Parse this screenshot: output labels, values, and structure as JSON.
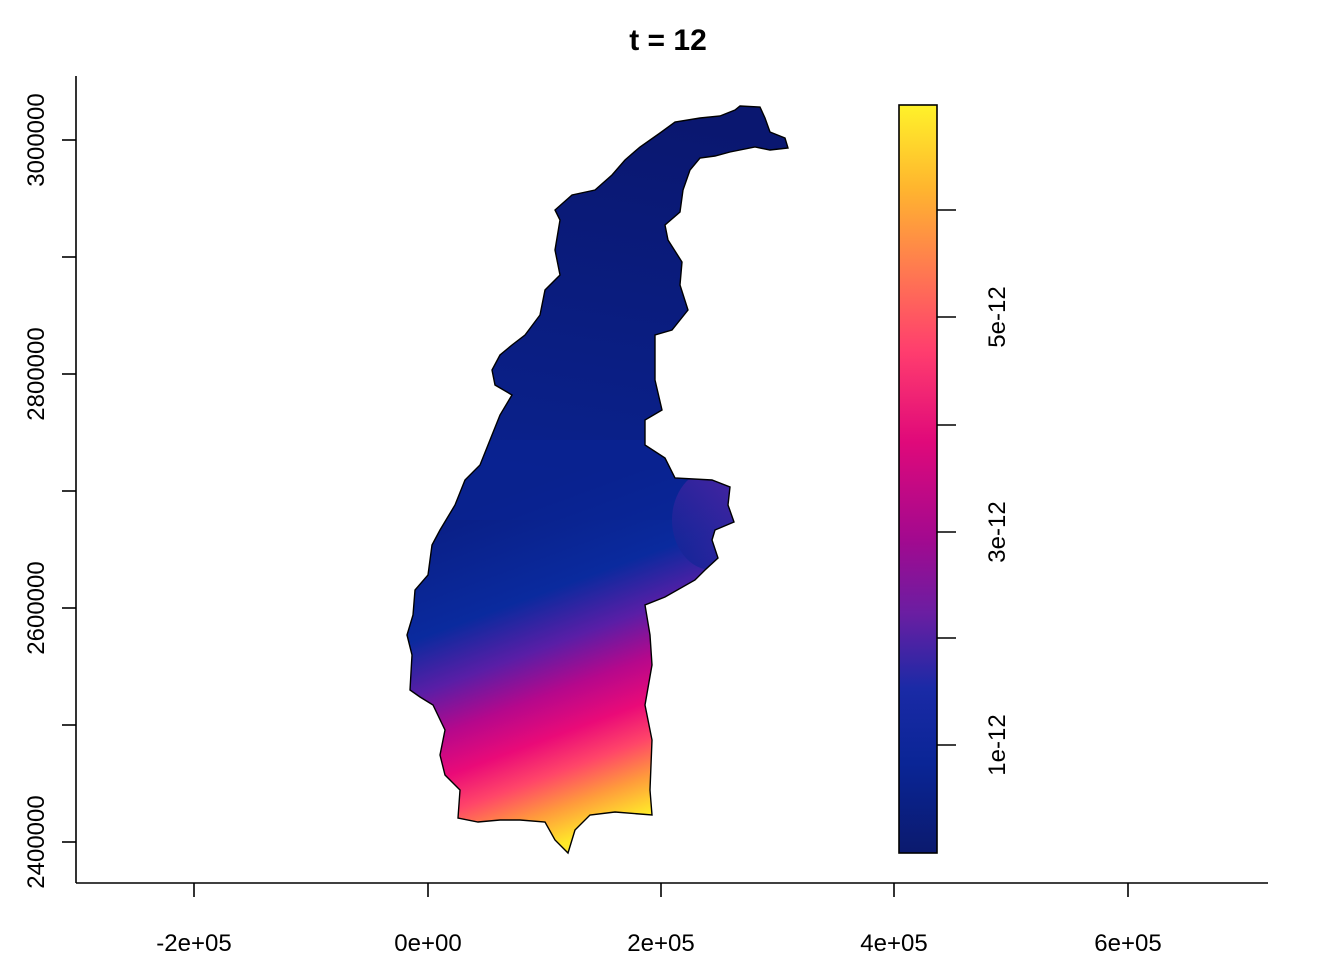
{
  "title": "t = 12",
  "map": {
    "crs_units": "projected easting/northing",
    "xlim": [
      -300000,
      720000
    ],
    "ylim": [
      2383000,
      3055000
    ],
    "x_ticks": [
      {
        "value": -200000,
        "label": "-2e+05"
      },
      {
        "value": 0,
        "label": "0e+00"
      },
      {
        "value": 200000,
        "label": "2e+05"
      },
      {
        "value": 400000,
        "label": "4e+05"
      },
      {
        "value": 600000,
        "label": "6e+05"
      }
    ],
    "y_ticks": [
      {
        "value": 2400000,
        "label": "2400000"
      },
      {
        "value": 2500000,
        "label": null
      },
      {
        "value": 2600000,
        "label": "2600000"
      },
      {
        "value": 2700000,
        "label": null
      },
      {
        "value": 2800000,
        "label": "2800000"
      },
      {
        "value": 2900000,
        "label": null
      },
      {
        "value": 3000000,
        "label": "3000000"
      }
    ],
    "region_outline_color": "#000000",
    "field_description": "raster field, low values in north, maximum at southern tip"
  },
  "legend": {
    "type": "continuous colorbar",
    "placement": "right, inside plot",
    "range": [
      3e-13,
      6e-12
    ],
    "ticks": [
      {
        "value": 1e-12,
        "label": "1e-12"
      },
      {
        "value": 2e-12,
        "label": null
      },
      {
        "value": 3e-12,
        "label": "3e-12"
      },
      {
        "value": 4e-12,
        "label": null
      },
      {
        "value": 5e-12,
        "label": "5e-12"
      },
      {
        "value": 6e-12,
        "label": null
      }
    ],
    "colors": [
      "#0b1a6e",
      "#0a2596",
      "#1a2aa6",
      "#6a1ea2",
      "#a3098f",
      "#e0097a",
      "#ff3d6e",
      "#ff7a50",
      "#ffb62e",
      "#fff22a"
    ]
  }
}
